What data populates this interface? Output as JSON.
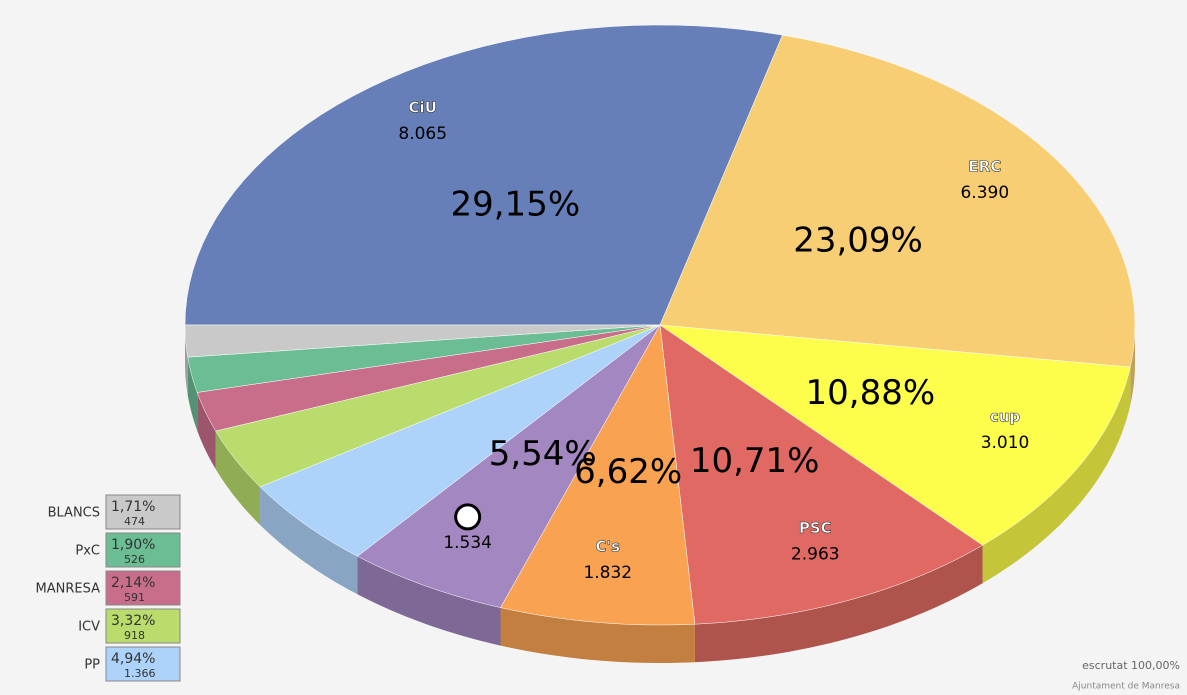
{
  "chart_data": {
    "type": "pie",
    "categories": [
      "CiU",
      "ERC",
      "cup",
      "PSC",
      "C's",
      null,
      "PP",
      "ICV",
      "MANRESA",
      "PxC",
      "BLANCS"
    ],
    "values": [
      29.15,
      23.09,
      10.88,
      10.71,
      6.62,
      5.54,
      4.94,
      3.32,
      2.14,
      1.9,
      1.71
    ],
    "value_labels": [
      "29,15%",
      "23,09%",
      "10,88%",
      "10,71%",
      "6,62%",
      "5,54%",
      "4,94%",
      "3,32%",
      "2,14%",
      "1,90%",
      "1,71%"
    ],
    "votes": [
      8065,
      6390,
      3010,
      2963,
      1832,
      1534,
      1366,
      918,
      591,
      526,
      474
    ],
    "vote_labels": [
      "8.065",
      "6.390",
      "3.010",
      "2.963",
      "1.832",
      "1.534",
      "1.366",
      "918",
      "591",
      "526",
      "474"
    ],
    "colors": [
      "#667fb8",
      "#f8ce74",
      "#fdfd4b",
      "#e06a63",
      "#f9a352",
      "#a287c0",
      "#aed3fa",
      "#b9dc6c",
      "#c86e8b",
      "#6bbd94",
      "#c9c9c9"
    ],
    "footer": "escrutat 100,00%",
    "credit": "Ajuntament de Manresa"
  }
}
